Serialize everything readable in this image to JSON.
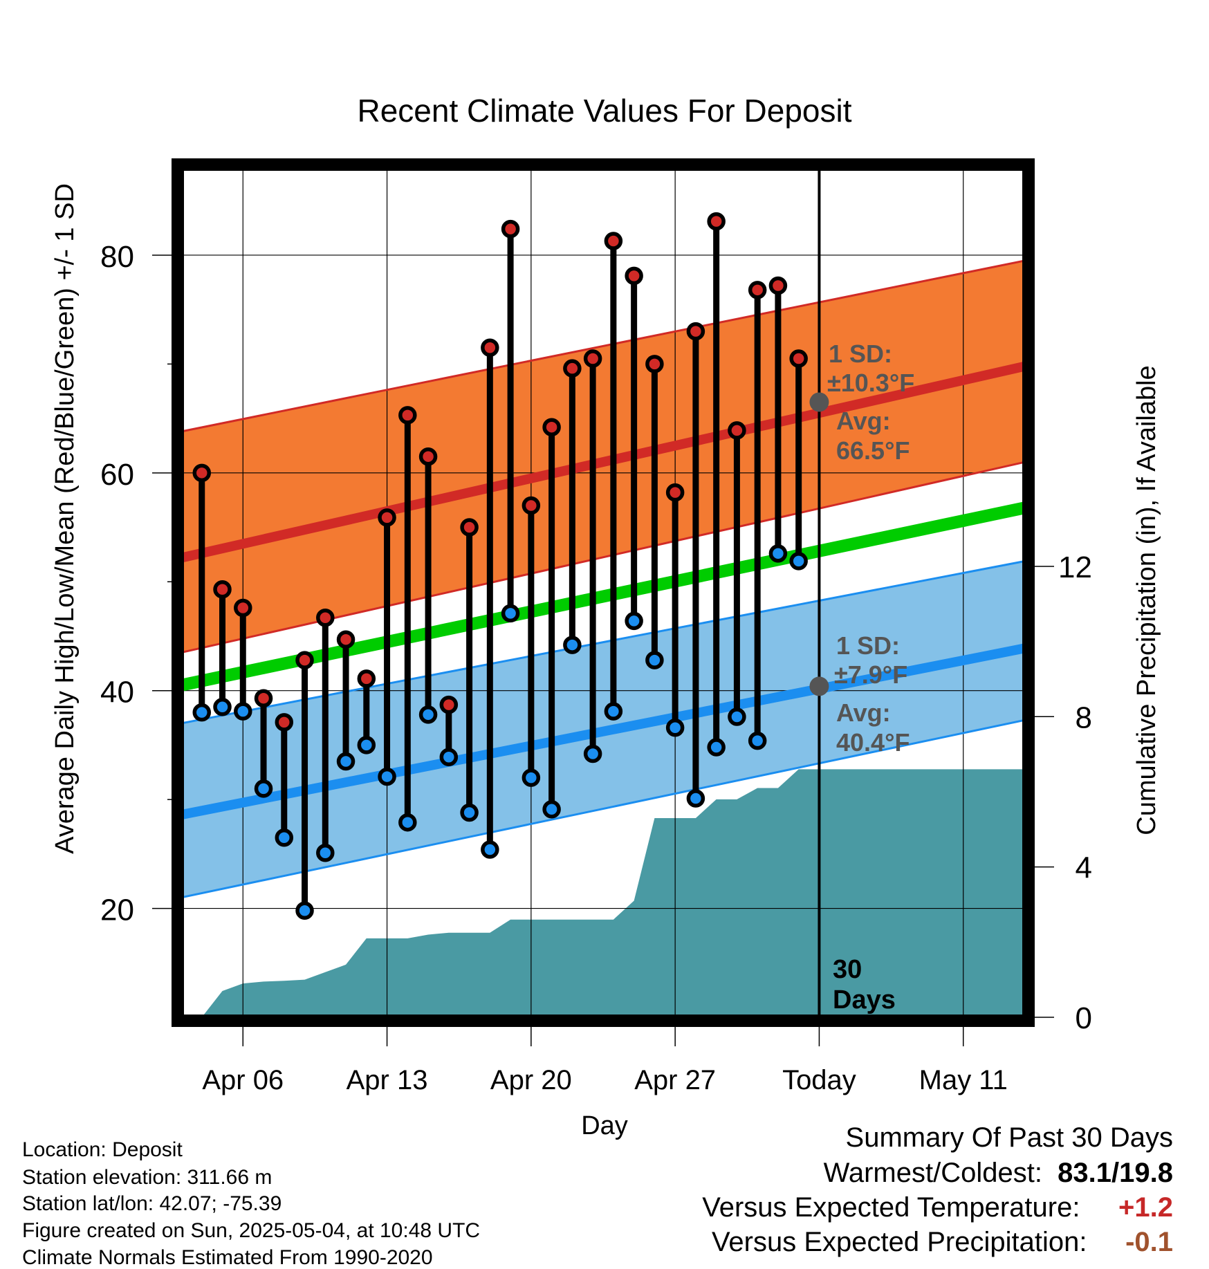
{
  "chart_data": {
    "type": "line",
    "title": "Recent Climate Values For Deposit",
    "xlabel": "Day",
    "ylabel": "Average Daily High/Low/Mean (Red/Blue/Green) +/- 1 SD",
    "y2label": "Cumulative Precipitation (in), If Available",
    "ylim": [
      10,
      88
    ],
    "y2lim": [
      0,
      22.6
    ],
    "yticks": [
      20,
      40,
      60,
      80
    ],
    "y2ticks": [
      0,
      4,
      8,
      12
    ],
    "xlim": [
      "2025-04-03",
      "2025-05-14"
    ],
    "xticks": [
      {
        "date": "2025-04-06",
        "label": "Apr 06"
      },
      {
        "date": "2025-04-13",
        "label": "Apr 13"
      },
      {
        "date": "2025-04-20",
        "label": "Apr 20"
      },
      {
        "date": "2025-04-27",
        "label": "Apr 27"
      },
      {
        "date": "2025-05-04",
        "label": "Today"
      },
      {
        "date": "2025-05-11",
        "label": "May 11"
      }
    ],
    "today": "2025-05-04",
    "today_label": "30 Days",
    "grid": true,
    "colors": {
      "high": "#d12a26",
      "high_band": "#f37a32",
      "low": "#1b8ef0",
      "low_band": "#84c1e8",
      "mean": "#00cc00",
      "precip": "#4a9aa3",
      "avg_marker": "#555555"
    },
    "normals": {
      "x": [
        "2025-04-03",
        "2025-05-14"
      ],
      "high_avg": [
        52.2,
        69.8
      ],
      "high_upper": [
        63.8,
        79.5
      ],
      "high_lower": [
        43.5,
        61.0
      ],
      "low_avg": [
        28.6,
        43.9
      ],
      "low_upper": [
        37.0,
        51.9
      ],
      "low_lower": [
        21.0,
        37.3
      ],
      "mean": [
        40.5,
        56.8
      ]
    },
    "observed": {
      "dates": [
        "2025-04-04",
        "2025-04-05",
        "2025-04-06",
        "2025-04-07",
        "2025-04-08",
        "2025-04-09",
        "2025-04-10",
        "2025-04-11",
        "2025-04-12",
        "2025-04-13",
        "2025-04-14",
        "2025-04-15",
        "2025-04-16",
        "2025-04-17",
        "2025-04-18",
        "2025-04-19",
        "2025-04-20",
        "2025-04-21",
        "2025-04-22",
        "2025-04-23",
        "2025-04-24",
        "2025-04-25",
        "2025-04-26",
        "2025-04-27",
        "2025-04-28",
        "2025-04-29",
        "2025-04-30",
        "2025-05-01",
        "2025-05-02",
        "2025-05-03"
      ],
      "high": [
        60.0,
        49.3,
        47.6,
        39.3,
        37.1,
        42.8,
        46.7,
        44.7,
        41.1,
        55.9,
        65.3,
        61.5,
        38.7,
        55.0,
        71.5,
        82.4,
        57.0,
        64.2,
        69.6,
        70.5,
        81.3,
        78.1,
        70.0,
        58.2,
        73.0,
        83.1,
        63.9,
        76.8,
        77.2,
        70.5
      ],
      "low": [
        38.0,
        38.5,
        38.1,
        31.0,
        26.5,
        19.8,
        25.1,
        33.5,
        35.0,
        32.1,
        27.9,
        37.8,
        33.9,
        28.8,
        25.4,
        47.1,
        32.0,
        29.1,
        44.2,
        34.2,
        38.1,
        46.4,
        42.8,
        36.6,
        30.1,
        34.8,
        37.6,
        35.4,
        52.6,
        51.9
      ]
    },
    "precip": {
      "dates": [
        "2025-04-03",
        "2025-04-04",
        "2025-04-05",
        "2025-04-06",
        "2025-04-07",
        "2025-04-08",
        "2025-04-09",
        "2025-04-10",
        "2025-04-11",
        "2025-04-12",
        "2025-04-13",
        "2025-04-14",
        "2025-04-15",
        "2025-04-16",
        "2025-04-17",
        "2025-04-18",
        "2025-04-19",
        "2025-04-20",
        "2025-04-21",
        "2025-04-22",
        "2025-04-23",
        "2025-04-24",
        "2025-04-25",
        "2025-04-26",
        "2025-04-27",
        "2025-04-28",
        "2025-04-29",
        "2025-04-30",
        "2025-05-01",
        "2025-05-02",
        "2025-05-03",
        "2025-05-14"
      ],
      "values": [
        0.0,
        0.0,
        0.7,
        0.9,
        0.95,
        0.97,
        1.0,
        1.2,
        1.4,
        2.1,
        2.1,
        2.1,
        2.2,
        2.25,
        2.25,
        2.25,
        2.6,
        2.6,
        2.6,
        2.6,
        2.6,
        2.6,
        3.1,
        5.3,
        5.3,
        5.3,
        5.8,
        5.8,
        6.1,
        6.1,
        6.6,
        6.6
      ]
    },
    "annotations": {
      "high": {
        "sd_label": "1 SD:",
        "sd_value": "±10.3°F",
        "avg_label": "Avg:",
        "avg_value": "66.5°F",
        "avg": 66.5
      },
      "low": {
        "sd_label": "1 SD:",
        "sd_value": "±7.9°F",
        "avg_label": "Avg:",
        "avg_value": "40.4°F",
        "avg": 40.4
      }
    }
  },
  "info": {
    "location": "Location: Deposit",
    "elevation": "Station elevation: 311.66 m",
    "latlon": "Station lat/lon: 42.07; -75.39",
    "created": "Figure created on Sun, 2025-05-04, at 10:48 UTC",
    "normals": "Climate Normals Estimated From 1990-2020"
  },
  "summary": {
    "title": "Summary Of Past 30 Days",
    "warm_cold_label": "Warmest/Coldest:",
    "warm_cold_value": "83.1/19.8",
    "temp_label": "Versus Expected Temperature:",
    "temp_value": "+1.2",
    "temp_color": "#c62828",
    "precip_label": "Versus Expected Precipitation:",
    "precip_value": "-0.1",
    "precip_color": "#a0522d"
  }
}
